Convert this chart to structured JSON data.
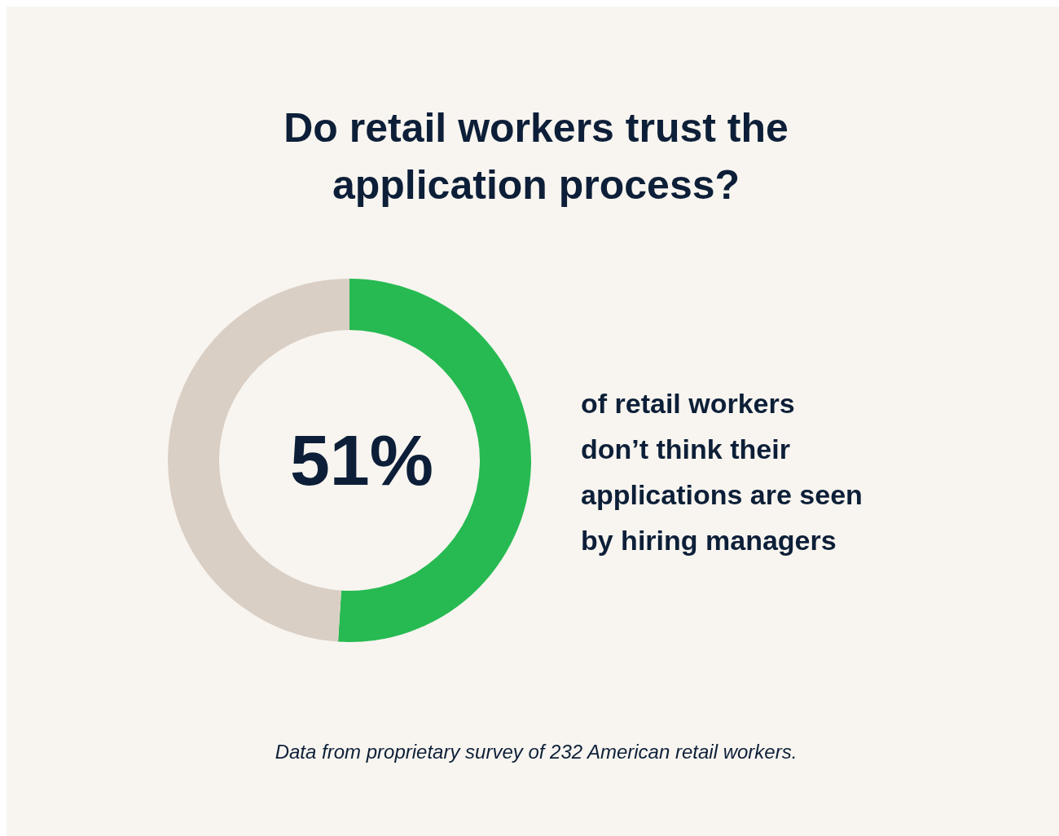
{
  "chart_data": {
    "type": "donut",
    "title": "Do retail workers trust the application process?",
    "categories": [
      null,
      null
    ],
    "values": [
      51,
      49
    ],
    "colors": [
      "#27ba52",
      "#dacfc5"
    ],
    "value_labels": [
      "51%",
      null
    ],
    "annotations": [
      "of retail workers don’t think their applications are seen by hiring managers",
      "Data from proprietary survey of 232 American retail workers."
    ]
  }
}
